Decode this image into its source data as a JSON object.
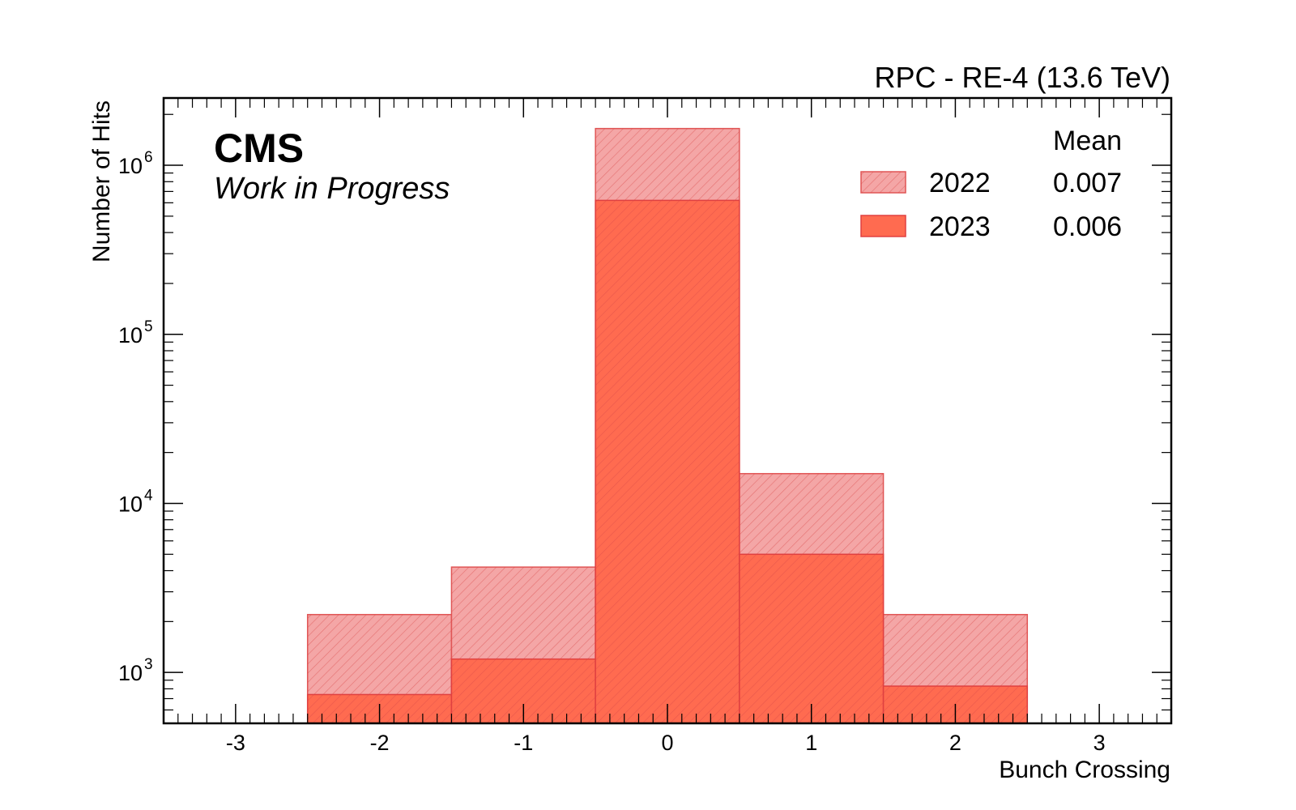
{
  "chart_data": {
    "type": "histogram",
    "title": "RPC - RE-4 (13.6 TeV)",
    "experiment": "CMS",
    "status": "Work in Progress",
    "xlabel": "Bunch Crossing",
    "ylabel": "Number of Hits",
    "xlim": [
      -3.5,
      3.5
    ],
    "ylim": [
      500,
      2500000
    ],
    "yscale": "log",
    "xticks": [
      "-3",
      "-2",
      "-1",
      "0",
      "1",
      "2",
      "3"
    ],
    "yticks": [
      {
        "base": "10",
        "exp": "3"
      },
      {
        "base": "10",
        "exp": "4"
      },
      {
        "base": "10",
        "exp": "5"
      },
      {
        "base": "10",
        "exp": "6"
      }
    ],
    "bin_edges": [
      -2.5,
      -1.5,
      -0.5,
      0.5,
      1.5,
      2.5
    ],
    "legend_header": "Mean",
    "legend_position": "top-right",
    "series": [
      {
        "name": "2022",
        "mean": "0.007",
        "values": [
          2200,
          4200,
          1650000,
          15000,
          2200
        ],
        "fill": "#f4a6a6",
        "hatch": true,
        "edge": "#e05555"
      },
      {
        "name": "2023",
        "mean": "0.006",
        "values": [
          740,
          1200,
          620000,
          5000,
          830
        ],
        "fill": "#ff6b50",
        "hatch": false,
        "edge": "#e04040"
      }
    ]
  }
}
